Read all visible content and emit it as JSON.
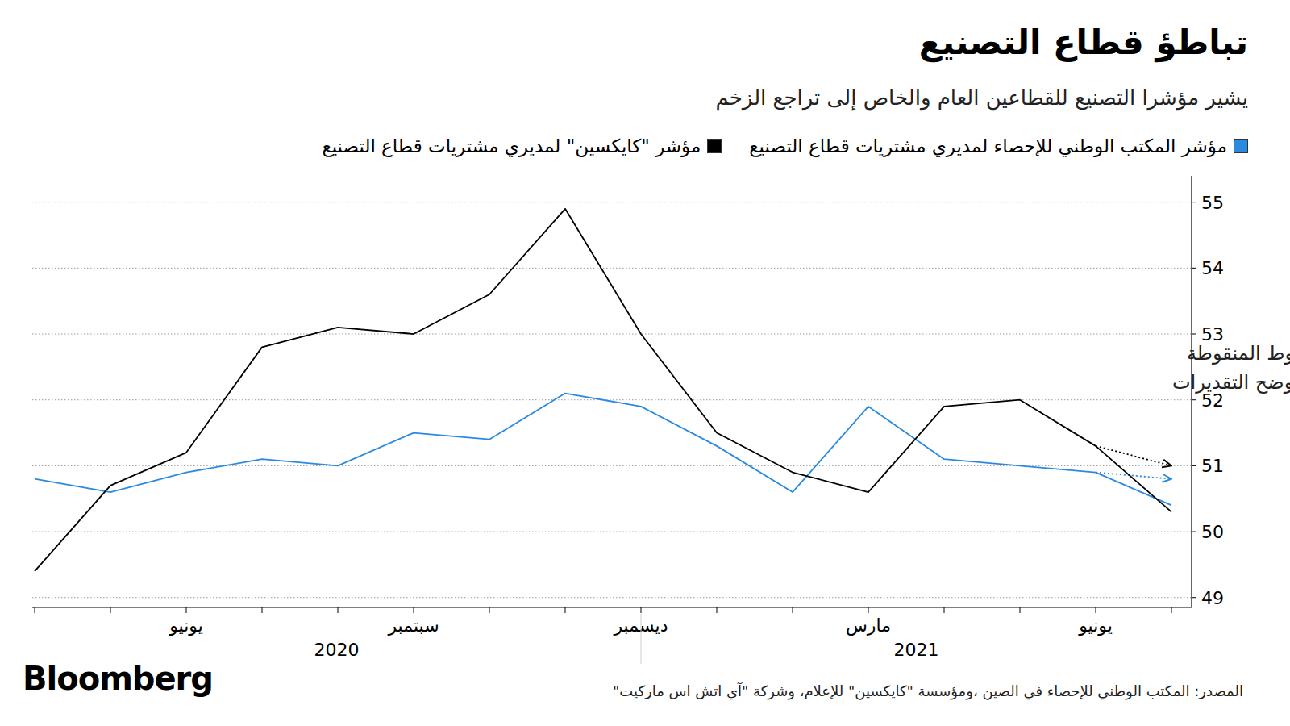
{
  "chart_data": {
    "type": "line",
    "title": "تباطؤ قطاع التصنيع",
    "subtitle": "يشير مؤشرا التصنيع للقطاعين العام والخاص إلى تراجع الزخم",
    "categories": [
      null,
      null,
      "يونيو",
      null,
      null,
      "سبتمبر",
      null,
      null,
      "ديسمبر",
      null,
      null,
      "مارس",
      null,
      null,
      "يونيو",
      null
    ],
    "x_groups": [
      "2020",
      "2021"
    ],
    "series": [
      {
        "name": "مؤشر المكتب الوطني للإحصاء لمديري مشتريات قطاع التصنيع",
        "color": "#2b8ae0",
        "values": [
          50.8,
          50.6,
          50.9,
          51.1,
          51.0,
          51.5,
          51.4,
          52.1,
          51.9,
          51.3,
          50.6,
          51.9,
          51.1,
          51.0,
          50.9,
          50.4
        ],
        "estimate_values": [
          null,
          null,
          null,
          null,
          null,
          null,
          null,
          null,
          null,
          null,
          null,
          null,
          null,
          null,
          50.9,
          50.8
        ]
      },
      {
        "name": "مؤشر \"كايكسين\" لمديري مشتريات قطاع التصنيع",
        "color": "#000000",
        "values": [
          49.4,
          50.7,
          51.2,
          52.8,
          53.1,
          53.0,
          53.6,
          54.9,
          53.0,
          51.5,
          50.9,
          50.6,
          51.9,
          52.0,
          51.3,
          50.3
        ],
        "estimate_values": [
          null,
          null,
          null,
          null,
          null,
          null,
          null,
          null,
          null,
          null,
          null,
          null,
          null,
          null,
          51.3,
          51.0
        ]
      }
    ],
    "ylim": [
      48.85,
      55.4
    ],
    "yticks": [
      49,
      50,
      51,
      52,
      53,
      54,
      55
    ],
    "grid": true,
    "annotation": [
      "الخطوط المنقوطة",
      "توضح التقديرات"
    ],
    "source": "المصدر: المكتب الوطني للإحصاء في الصين ،ومؤسسة \"كايكسين\" للإعلام، وشركة \"آي اتش اس ماركيت\"",
    "brand": "Bloomberg"
  }
}
